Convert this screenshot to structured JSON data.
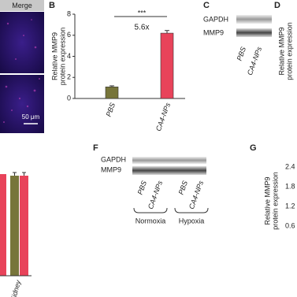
{
  "panel_a": {
    "header": "Merge",
    "scale_bar": "50 μm"
  },
  "chart_data": [
    {
      "type": "bar",
      "panel": "B",
      "ylabel": [
        "Relative MMP9",
        "protein expression"
      ],
      "categories": [
        "PBS",
        "CA4-NPs"
      ],
      "values": [
        1.1,
        6.2
      ],
      "errors": [
        0.1,
        0.25
      ],
      "colors": [
        "#77753a",
        "#e8435a"
      ],
      "ylim": [
        0,
        8
      ],
      "yticks": [
        0,
        2,
        4,
        6,
        8
      ],
      "annotations": [
        "***",
        "5.6x"
      ]
    },
    {
      "type": "axis",
      "panel": "G",
      "ylabel": [
        "Relative MMP9",
        "protein expression"
      ],
      "ylim": [
        0,
        2.4
      ],
      "yticks": [
        0.6,
        1.2,
        1.8,
        2.4
      ]
    }
  ],
  "panel_c": {
    "label": "C",
    "rows": [
      "GAPDH",
      "MMP9"
    ],
    "lanes": [
      "PBS",
      "CA4-NPs"
    ]
  },
  "panel_d": {
    "label": "D",
    "ylabel": [
      "Relative MMP9",
      "protein expression"
    ]
  },
  "panel_e": {
    "category": "Kidney"
  },
  "panel_f": {
    "label": "F",
    "rows": [
      "GAPDH",
      "MMP9"
    ],
    "lanes": [
      "PBS",
      "CA4-NPs",
      "PBS",
      "CA4-NPs"
    ],
    "groups": [
      "Normoxia",
      "Hypoxia"
    ]
  }
}
